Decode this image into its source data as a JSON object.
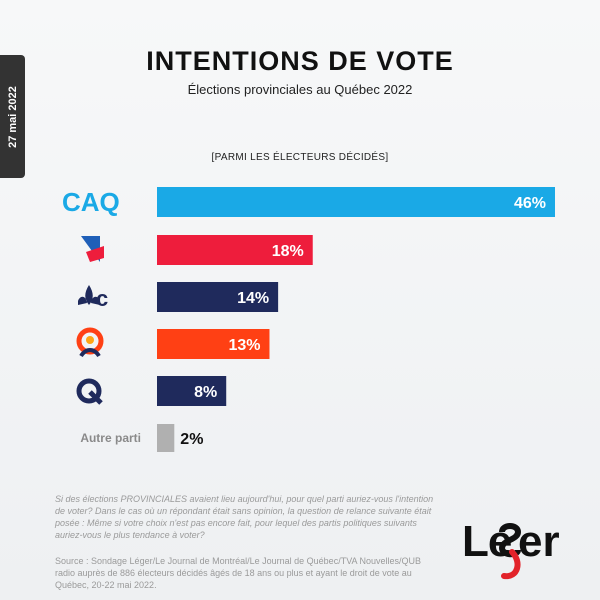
{
  "date_tab": "27 mai 2022",
  "title": "INTENTIONS DE VOTE",
  "subtitle": "Élections provinciales au Québec 2022",
  "note": "[PARMI LES ÉLECTEURS DÉCIDÉS]",
  "chart_data": {
    "type": "bar",
    "orientation": "horizontal",
    "categories": [
      "CAQ",
      "PLQ",
      "PCQ",
      "QS",
      "PQ",
      "Autre parti"
    ],
    "values": [
      46,
      18,
      14,
      13,
      8,
      2
    ],
    "value_labels": [
      "46%",
      "18%",
      "14%",
      "13%",
      "8%",
      "2%"
    ],
    "unit": "%",
    "colors": [
      "#1aa9e6",
      "#ee1d3c",
      "#1f2a5c",
      "#ff4014",
      "#1f2a5c",
      "#b0b0b0"
    ],
    "category_label_text": "Autre parti",
    "category_logo_icons": [
      "caq-logo-icon",
      "plq-logo-icon",
      "pcq-logo-icon",
      "qs-logo-icon",
      "pq-logo-icon"
    ]
  },
  "footer": {
    "question": "Si des élections PROVINCIALES avaient lieu aujourd'hui, pour quel parti auriez-vous l'intention de voter? Dans le cas où un répondant était sans opinion, la question de relance suivante était posée : Même si votre choix n'est pas encore fait, pour lequel des partis politiques suivants auriez-vous le plus tendance à voter?",
    "source": "Source : Sondage Léger/Le Journal de Montréal/Le Journal de Québec/TVA Nouvelles/QUB radio auprès de 886 électeurs décidés âgés de 18 ans ou plus et ayant le droit de vote au Québec, 20-22 mai 2022."
  },
  "brand": {
    "logo_text": "Leger",
    "accent": "#e2232a"
  }
}
